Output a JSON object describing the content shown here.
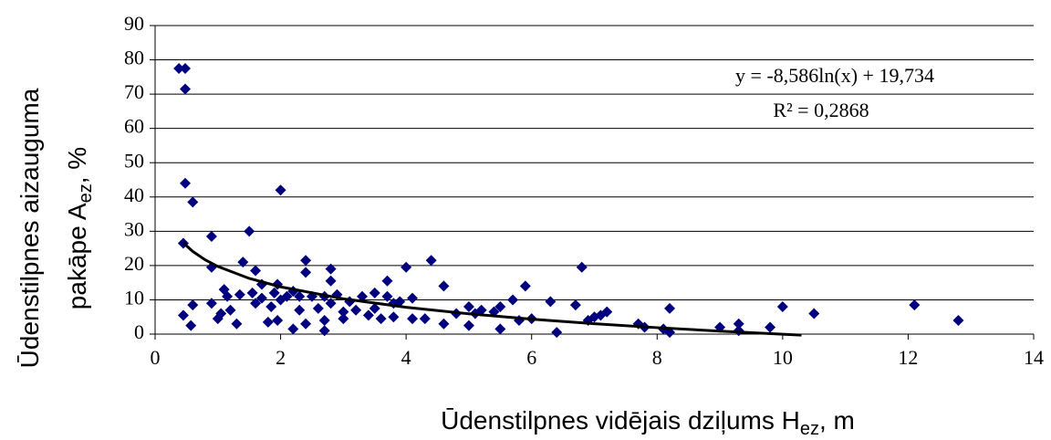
{
  "chart_data": {
    "type": "scatter",
    "x_label": [
      "Ūdenstilpnes vidējais dziļums H",
      "ez",
      ", m"
    ],
    "y_label": {
      "line1": "Ūdenstilpnes aizauguma",
      "line2": [
        "pakāpe A",
        "ez",
        ", %"
      ]
    },
    "annotations": [
      "y = -8,586ln(x)  + 19,734",
      "R² = 0,2868"
    ],
    "xlim": [
      0,
      14
    ],
    "xticks": [
      0,
      2,
      4,
      6,
      8,
      10,
      12,
      14
    ],
    "ylim": [
      0,
      90
    ],
    "yticks": [
      0,
      10,
      20,
      30,
      40,
      50,
      60,
      70,
      80,
      90
    ],
    "grid": true,
    "series": [
      {
        "color": "#00007f",
        "x": [
          0.38,
          0.48,
          0.48,
          0.48,
          0.45,
          0.6,
          0.45,
          0.6,
          0.57,
          0.9,
          0.9,
          0.9,
          1.0,
          1.05,
          1.1,
          1.15,
          1.2,
          1.3,
          1.35,
          1.4,
          1.5,
          1.55,
          1.6,
          1.6,
          1.7,
          1.7,
          1.8,
          1.85,
          1.9,
          1.95,
          1.95,
          2.0,
          2.0,
          2.1,
          2.2,
          2.2,
          2.3,
          2.3,
          2.4,
          2.4,
          2.4,
          2.5,
          2.6,
          2.7,
          2.7,
          2.7,
          2.8,
          2.8,
          2.8,
          2.9,
          3.0,
          3.0,
          3.1,
          3.2,
          3.3,
          3.4,
          3.5,
          3.5,
          3.6,
          3.7,
          3.7,
          3.8,
          3.8,
          3.9,
          4.0,
          4.1,
          4.1,
          4.3,
          4.4,
          4.6,
          4.6,
          4.8,
          5.0,
          5.0,
          5.1,
          5.2,
          5.4,
          5.5,
          5.5,
          5.7,
          5.8,
          5.9,
          6.0,
          6.3,
          6.4,
          6.7,
          6.8,
          6.9,
          7.0,
          7.1,
          7.2,
          7.7,
          7.8,
          8.1,
          8.2,
          8.2,
          9.0,
          9.3,
          9.3,
          9.8,
          10.0,
          10.5,
          12.1,
          12.8
        ],
        "values": [
          77.5,
          77.5,
          71.5,
          44,
          26.5,
          38.5,
          5.5,
          8.5,
          2.5,
          28.5,
          19.5,
          9,
          4.5,
          6,
          13,
          11,
          7,
          3,
          11.5,
          21,
          30,
          12,
          18.5,
          9,
          14.5,
          10.5,
          3.5,
          8,
          12,
          14.5,
          4,
          42,
          10,
          11,
          12.5,
          1.5,
          7,
          11,
          21.5,
          18,
          3,
          11,
          7.5,
          11,
          4,
          1,
          19,
          15.5,
          9,
          11.5,
          6.5,
          4.5,
          9.5,
          7,
          11,
          5.5,
          12,
          7.5,
          4.5,
          15.5,
          11,
          9,
          5,
          9.5,
          19.5,
          10.5,
          4.5,
          4.5,
          21.5,
          14,
          3,
          6,
          8,
          2.5,
          6,
          7,
          6.5,
          8,
          1.5,
          10,
          4,
          14,
          4.5,
          9.5,
          0.5,
          8.5,
          19.5,
          4,
          5,
          5.5,
          6.5,
          3,
          2,
          1.5,
          7.5,
          0.5,
          2,
          3,
          1,
          2,
          8,
          6,
          8.5,
          4
        ]
      },
      {
        "type": "line",
        "color": "#000000",
        "x": [
          0.45,
          0.6,
          0.8,
          1,
          1.5,
          2,
          3,
          4,
          5,
          6,
          7,
          8,
          9,
          10,
          10.3
        ],
        "values": [
          26.59,
          24.12,
          21.65,
          19.73,
          16.25,
          13.78,
          10.3,
          7.83,
          5.92,
          4.35,
          3.03,
          1.88,
          0.87,
          -0.04,
          -0.29
        ]
      }
    ]
  }
}
